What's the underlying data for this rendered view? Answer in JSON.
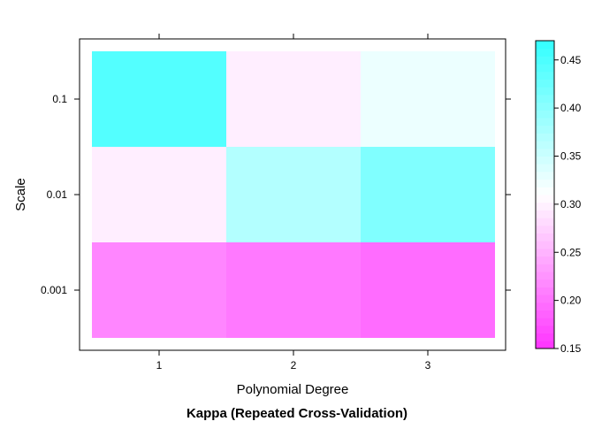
{
  "chart_data": {
    "type": "heatmap",
    "title": "Kappa (Repeated Cross-Validation)",
    "xlabel": "Polynomial Degree",
    "ylabel": "Scale",
    "x_categories": [
      "1",
      "2",
      "3"
    ],
    "y_categories": [
      "0.001",
      "0.01",
      "0.1"
    ],
    "values": [
      [
        0.215,
        0.205,
        0.195
      ],
      [
        0.297,
        0.37,
        0.41
      ],
      [
        0.445,
        0.297,
        0.325
      ]
    ],
    "colorbar": {
      "range": [
        0.15,
        0.47
      ],
      "ticks": [
        "0.15",
        "0.20",
        "0.25",
        "0.30",
        "0.35",
        "0.40",
        "0.45"
      ],
      "low_color": "#ff33ff",
      "mid_color": "#ffffff",
      "high_color": "#33ffff",
      "mid_value": 0.31
    }
  }
}
